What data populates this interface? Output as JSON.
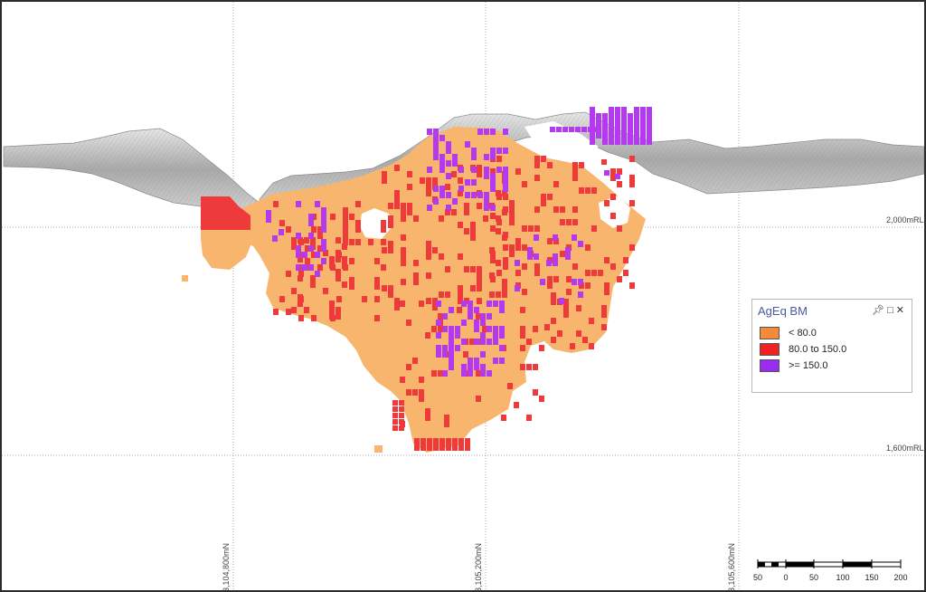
{
  "rl_labels": {
    "upper": "2,000mRL",
    "lower": "1,600mRL"
  },
  "northings": {
    "left": "3,104,800mN",
    "middle": "3,105,200mN",
    "right": "3,105,600mN"
  },
  "legend": {
    "title": "AgEq BM",
    "items": [
      {
        "label": "< 80.0",
        "color": "#f58a3a"
      },
      {
        "label": "80.0 to 150.0",
        "color": "#ee2222"
      },
      {
        "label": ">= 150.0",
        "color": "#9a2cf0"
      }
    ],
    "icons": [
      "pin-icon",
      "maximize-icon",
      "close-icon"
    ]
  },
  "block_colors": {
    "low": "#f7b56e",
    "mid": "#ee3a3a",
    "high": "#b43af0"
  },
  "scalebar": {
    "labels": [
      "50",
      "0",
      "50",
      "100",
      "150",
      "200"
    ]
  }
}
